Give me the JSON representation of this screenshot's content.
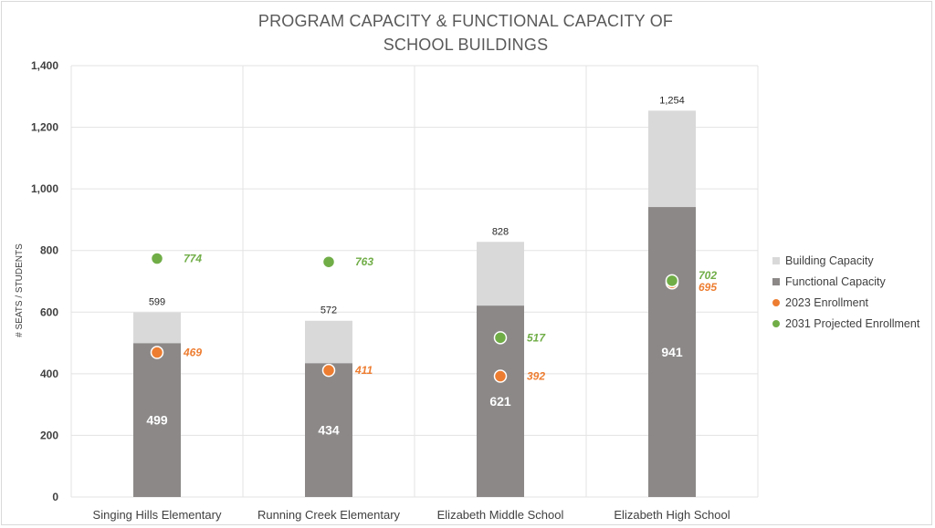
{
  "chart_data": {
    "type": "bar",
    "title_lines": [
      "PROGRAM CAPACITY & FUNCTIONAL CAPACITY OF",
      "SCHOOL BUILDINGS"
    ],
    "xlabel": "",
    "ylabel": "# SEATS / STUDENTS",
    "ylim": [
      0,
      1400
    ],
    "yticks": [
      0,
      200,
      400,
      600,
      800,
      1000,
      1200,
      1400
    ],
    "ytick_labels": [
      "0",
      "200",
      "400",
      "600",
      "800",
      "1,000",
      "1,200",
      "1,400"
    ],
    "grid": true,
    "legend_position": "right",
    "categories": [
      "Singing Hills Elementary",
      "Running Creek Elementary",
      "Elizabeth Middle School",
      "Elizabeth High School"
    ],
    "series": [
      {
        "name": "Building Capacity",
        "kind": "bar",
        "color": "#d9d9d9",
        "values": [
          599,
          572,
          828,
          1254
        ],
        "labels": [
          "599",
          "572",
          "828",
          "1,254"
        ]
      },
      {
        "name": "Functional Capacity",
        "kind": "bar",
        "color": "#8c8888",
        "values": [
          499,
          434,
          621,
          941
        ],
        "labels": [
          "499",
          "434",
          "621",
          "941"
        ]
      },
      {
        "name": "2023 Enrollment",
        "kind": "point",
        "color": "#ed7d31",
        "values": [
          469,
          411,
          392,
          695
        ],
        "labels": [
          "469",
          "411",
          "392",
          "695"
        ]
      },
      {
        "name": "2031 Projected Enrollment",
        "kind": "point",
        "color": "#70ad47",
        "values": [
          774,
          763,
          517,
          702
        ],
        "labels": [
          "774",
          "763",
          "517",
          "702"
        ]
      }
    ]
  }
}
